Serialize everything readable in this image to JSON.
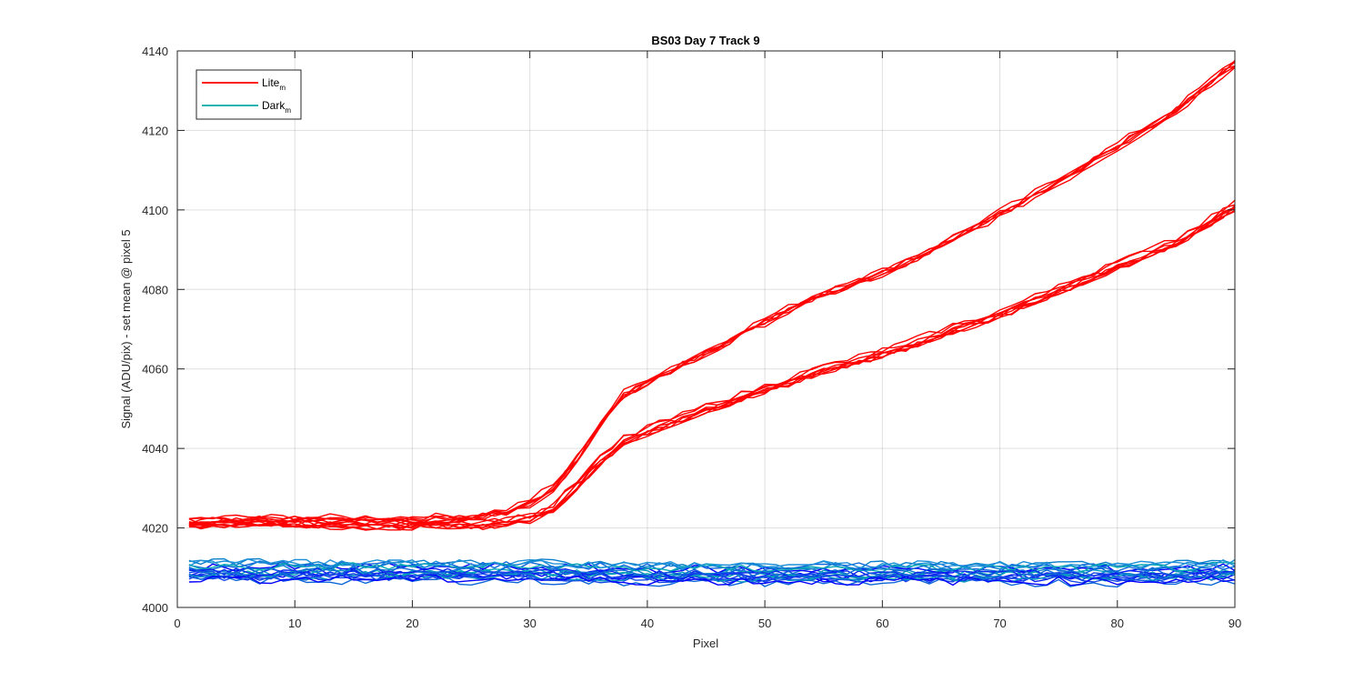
{
  "chart_data": {
    "type": "line",
    "title": "BS03 Day 7 Track 9",
    "xlabel": "Pixel",
    "ylabel": "Signal (ADU/pix) - set mean @ pixel 5",
    "xlim": [
      0,
      90
    ],
    "ylim": [
      4000,
      4140
    ],
    "xticks": [
      0,
      10,
      20,
      30,
      40,
      50,
      60,
      70,
      80,
      90
    ],
    "yticks": [
      4000,
      4020,
      4040,
      4060,
      4080,
      4100,
      4120,
      4140
    ],
    "grid": true,
    "legend": {
      "position": "top-left",
      "entries": [
        {
          "name": "Lite",
          "subscript": "m",
          "color": "#ff0000"
        },
        {
          "name": "Dark",
          "subscript": "m",
          "color": "#00a6a6"
        }
      ]
    },
    "series": [
      {
        "name": "Lite",
        "color": "#ff0000",
        "count": 6,
        "x": [
          1,
          5,
          10,
          15,
          20,
          25,
          28,
          30,
          32,
          34,
          36,
          38,
          40,
          45,
          50,
          55,
          60,
          65,
          70,
          75,
          80,
          85,
          90
        ],
        "y": [
          4021.5,
          4022,
          4022,
          4022,
          4022,
          4022.5,
          4024,
          4026.5,
          4030,
          4037,
          4046,
          4053.5,
          4057,
          4064,
          4072,
          4079,
          4084,
          4091,
          4099,
          4107,
          4116,
          4125,
          4137
        ]
      },
      {
        "name": "Lite",
        "color": "#ff0000",
        "count": 8,
        "x": [
          1,
          5,
          10,
          15,
          20,
          25,
          28,
          30,
          32,
          34,
          36,
          38,
          40,
          45,
          50,
          55,
          60,
          65,
          70,
          75,
          80,
          85,
          90
        ],
        "y": [
          4021,
          4021.5,
          4021.5,
          4021,
          4021,
          4021,
          4021.5,
          4022.5,
          4025,
          4031,
          4037,
          4042,
          4044.5,
          4050,
          4055,
          4060,
          4064,
          4069,
          4074,
          4080,
          4086,
          4092,
          4101
        ]
      },
      {
        "name": "Dark",
        "color": "#00a6a6",
        "count": 20,
        "x": [
          1,
          10,
          20,
          30,
          40,
          50,
          60,
          70,
          80,
          90
        ],
        "y": [
          4009,
          4009,
          4009,
          4009,
          4008.5,
          4008.5,
          4008.5,
          4008.5,
          4008.5,
          4009
        ]
      }
    ]
  }
}
